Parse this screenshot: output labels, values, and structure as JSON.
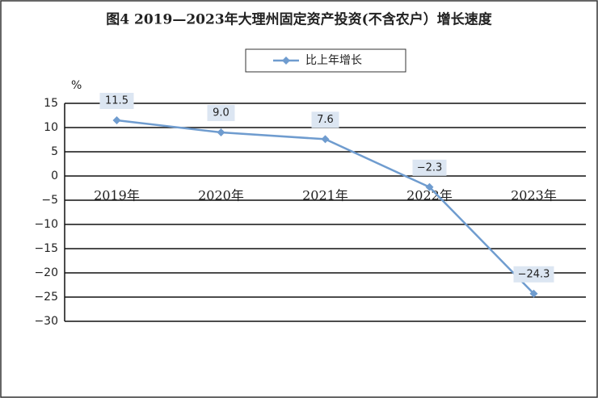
{
  "chart_data": {
    "type": "line",
    "title": "图4 2019—2023年大理州固定资产投资(不含农户）增长速度",
    "y_label": "%",
    "categories": [
      "2019年",
      "2020年",
      "2021年",
      "2022年",
      "2023年"
    ],
    "series": [
      {
        "name": "比上年增长",
        "color": "#6f9ccf",
        "values": [
          11.5,
          9.0,
          7.6,
          -2.3,
          -24.3
        ],
        "value_labels": [
          "11.5",
          "9.0",
          "7.6",
          "−2.3",
          "−24.3"
        ]
      }
    ],
    "ylim": [
      -30,
      15
    ],
    "yticks": [
      15,
      10,
      5,
      0,
      {
        "value": -5,
        "label": "−5"
      },
      {
        "value": -10,
        "label": "−10"
      },
      {
        "value": -15,
        "label": "−15"
      },
      {
        "value": -20,
        "label": "−20"
      },
      {
        "value": -25,
        "label": "−25"
      },
      {
        "value": -30,
        "label": "−30"
      }
    ],
    "grid": true
  }
}
